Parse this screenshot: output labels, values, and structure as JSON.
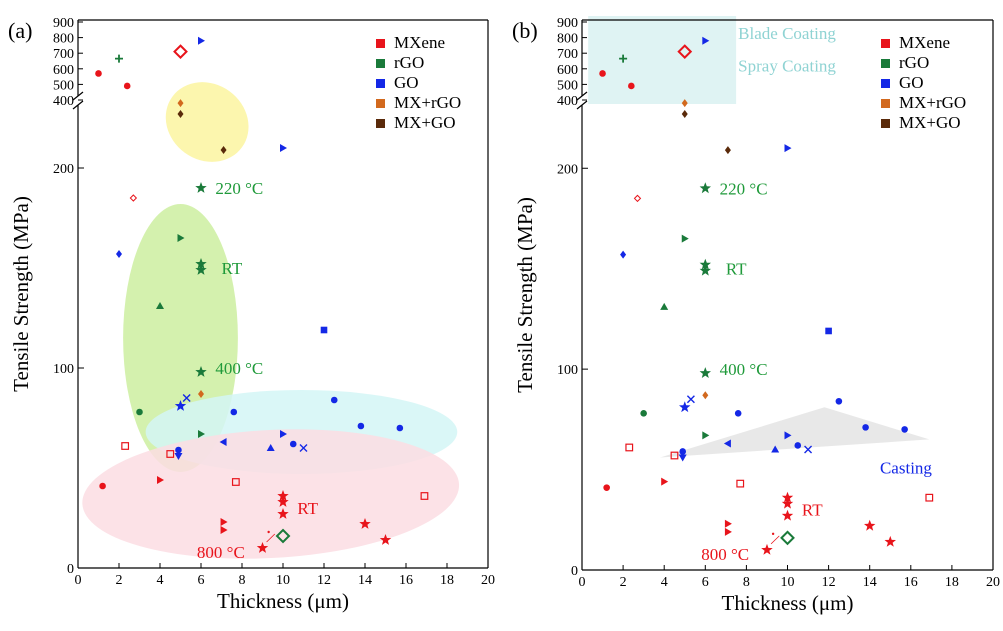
{
  "colors": {
    "mxene": "#e8141b",
    "rgo": "#1a7a3a",
    "go": "#1428e6",
    "mxrgo": "#d2691e",
    "mxgo": "#5a2a0a",
    "annot_green": "#1f9a3a",
    "annot_red": "#e8141b",
    "annot_blue": "#1428e6",
    "annot_cyan": "#8fd3d3"
  },
  "chart_data": [
    {
      "panel": "(a)",
      "type": "scatter",
      "xlabel": "Thickness (μm)",
      "ylabel": "Tensile Strength (MPa)",
      "xlim": [
        0,
        20
      ],
      "xticks": [
        "0",
        "2",
        "4",
        "6",
        "8",
        "10",
        "12",
        "14",
        "16",
        "18",
        "20"
      ],
      "ylim_lower": [
        0,
        230
      ],
      "yticks_lower": [
        "0",
        "100",
        "200"
      ],
      "yticks_upper": [
        "400",
        "500",
        "600",
        "700",
        "800",
        "900"
      ],
      "legend": [
        "MXene",
        "rGO",
        "GO",
        "MX+rGO",
        "MX+GO"
      ],
      "legend_position": "top-right",
      "annotations": [
        {
          "text": "220 °C",
          "x": 6.7,
          "y": 190,
          "color": "annot_green"
        },
        {
          "text": "RT",
          "x": 7.0,
          "y": 150,
          "color": "annot_green"
        },
        {
          "text": "400 °C",
          "x": 6.7,
          "y": 100,
          "color": "annot_green"
        },
        {
          "text": "RT",
          "x": 10.7,
          "y": 30,
          "color": "annot_red"
        },
        {
          "text": "800 °C",
          "x": 5.8,
          "y": 8,
          "color": "annot_red"
        }
      ]
    },
    {
      "panel": "(b)",
      "type": "scatter",
      "xlabel": "Thickness (μm)",
      "ylabel": "Tensile Strength (MPa)",
      "xlim": [
        0,
        20
      ],
      "xticks": [
        "0",
        "2",
        "4",
        "6",
        "8",
        "10",
        "12",
        "14",
        "16",
        "18",
        "20"
      ],
      "ylim_lower": [
        0,
        230
      ],
      "yticks_lower": [
        "0",
        "100",
        "200"
      ],
      "yticks_upper": [
        "400",
        "500",
        "600",
        "700",
        "800",
        "900"
      ],
      "legend": [
        "MXene",
        "rGO",
        "GO",
        "MX+rGO",
        "MX+GO"
      ],
      "legend_position": "top-right",
      "annotations": [
        {
          "text": "Blade Coating",
          "x": 7.6,
          "y_upper": 830,
          "color": "annot_cyan"
        },
        {
          "text": "Spray Coating",
          "x": 7.6,
          "y_upper": 620,
          "color": "annot_cyan"
        },
        {
          "text": "220 °C",
          "x": 6.7,
          "y": 190,
          "color": "annot_green"
        },
        {
          "text": "RT",
          "x": 7.0,
          "y": 150,
          "color": "annot_green"
        },
        {
          "text": "400 °C",
          "x": 6.7,
          "y": 100,
          "color": "annot_green"
        },
        {
          "text": "Casting",
          "x": 14.5,
          "y": 51,
          "color": "annot_blue"
        },
        {
          "text": "RT",
          "x": 10.7,
          "y": 30,
          "color": "annot_red"
        },
        {
          "text": "800 °C",
          "x": 5.8,
          "y": 8,
          "color": "annot_red"
        }
      ]
    }
  ],
  "points": [
    {
      "m": "MXene",
      "s": "circle",
      "x": 1.0,
      "yu": 570
    },
    {
      "m": "MXene",
      "s": "circle",
      "x": 2.4,
      "yu": 490
    },
    {
      "m": "MXene",
      "s": "circle",
      "x": 1.2,
      "y": 41
    },
    {
      "m": "MXene",
      "s": "sq-open",
      "x": 2.3,
      "y": 61
    },
    {
      "m": "MXene",
      "s": "sq-open",
      "x": 4.5,
      "y": 57
    },
    {
      "m": "MXene",
      "s": "sq-open",
      "x": 7.7,
      "y": 43
    },
    {
      "m": "MXene",
      "s": "sq-open",
      "x": 16.9,
      "y": 36
    },
    {
      "m": "MXene",
      "s": "tri-right",
      "x": 4.0,
      "y": 44
    },
    {
      "m": "MXene",
      "s": "tri-right",
      "x": 7.1,
      "y": 23
    },
    {
      "m": "MXene",
      "s": "tri-right",
      "x": 7.1,
      "y": 19
    },
    {
      "m": "MXene",
      "s": "star",
      "x": 9.0,
      "y": 10
    },
    {
      "m": "MXene",
      "s": "star",
      "x": 10.0,
      "y": 36
    },
    {
      "m": "MXene",
      "s": "star",
      "x": 10.0,
      "y": 33
    },
    {
      "m": "MXene",
      "s": "star",
      "x": 10.0,
      "y": 27
    },
    {
      "m": "MXene",
      "s": "star",
      "x": 14.0,
      "y": 22
    },
    {
      "m": "MXene",
      "s": "star",
      "x": 15.0,
      "y": 14
    },
    {
      "m": "MXene",
      "s": "dia-open",
      "x": 5.0,
      "yu": 710
    },
    {
      "m": "MXene",
      "s": "dia-open",
      "x": 2.7,
      "y": 185
    },
    {
      "m": "MXene",
      "s": "tiny",
      "x": 9.3,
      "y": 18
    },
    {
      "m": "rGO",
      "s": "plus",
      "x": 2.0,
      "yu": 665
    },
    {
      "m": "rGO",
      "s": "circle",
      "x": 3.0,
      "y": 78
    },
    {
      "m": "rGO",
      "s": "tri-up",
      "x": 4.0,
      "y": 131
    },
    {
      "m": "rGO",
      "s": "tri-right",
      "x": 5.0,
      "y": 165
    },
    {
      "m": "rGO",
      "s": "star",
      "x": 6.0,
      "y": 190
    },
    {
      "m": "rGO",
      "s": "star",
      "x": 6.0,
      "y": 152
    },
    {
      "m": "rGO",
      "s": "star",
      "x": 6.0,
      "y": 149
    },
    {
      "m": "rGO",
      "s": "star",
      "x": 6.0,
      "y": 98
    },
    {
      "m": "rGO",
      "s": "tri-right",
      "x": 6.0,
      "y": 67
    },
    {
      "m": "rGO",
      "s": "dia-open",
      "x": 10.0,
      "y": 16
    },
    {
      "m": "GO",
      "s": "tri-right",
      "x": 6.0,
      "yu": 780
    },
    {
      "m": "GO",
      "s": "tri-right",
      "x": 10.0,
      "y": 210
    },
    {
      "m": "GO",
      "s": "tri-right",
      "x": 10.0,
      "y": 67
    },
    {
      "m": "GO",
      "s": "diamond",
      "x": 2.0,
      "y": 157
    },
    {
      "m": "GO",
      "s": "square",
      "x": 12.0,
      "y": 119
    },
    {
      "m": "GO",
      "s": "circle",
      "x": 12.5,
      "y": 84
    },
    {
      "m": "GO",
      "s": "circle",
      "x": 13.8,
      "y": 71
    },
    {
      "m": "GO",
      "s": "circle",
      "x": 15.7,
      "y": 70
    },
    {
      "m": "GO",
      "s": "circle",
      "x": 7.6,
      "y": 78
    },
    {
      "m": "GO",
      "s": "circle",
      "x": 4.9,
      "y": 59
    },
    {
      "m": "GO",
      "s": "circle",
      "x": 10.5,
      "y": 62
    },
    {
      "m": "GO",
      "s": "tri-down",
      "x": 4.9,
      "y": 56
    },
    {
      "m": "GO",
      "s": "cross",
      "x": 5.3,
      "y": 85
    },
    {
      "m": "GO",
      "s": "star",
      "x": 5.0,
      "y": 81
    },
    {
      "m": "GO",
      "s": "tri-left",
      "x": 7.1,
      "y": 63
    },
    {
      "m": "GO",
      "s": "tri-up",
      "x": 9.4,
      "y": 60
    },
    {
      "m": "GO",
      "s": "cross",
      "x": 11.0,
      "y": 60
    },
    {
      "m": "MX+rGO",
      "s": "diamond",
      "x": 5.0,
      "yu": 380
    },
    {
      "m": "MX+rGO",
      "s": "diamond",
      "x": 6.0,
      "y": 87
    },
    {
      "m": "MX+GO",
      "s": "diamond",
      "x": 5.0,
      "y": 227
    },
    {
      "m": "MX+GO",
      "s": "diamond",
      "x": 7.1,
      "y": 209
    }
  ],
  "panel_a_regions": [
    {
      "name": "yellow-region",
      "fill": "#fbf5a0",
      "cx": 6.3,
      "cy": 223,
      "rx": 2.1,
      "ry": 19,
      "rot": 36
    },
    {
      "name": "green-region",
      "fill": "#cdeea0",
      "cx": 5.0,
      "cy": 115,
      "rx": 2.8,
      "ry": 67,
      "rot": 0
    },
    {
      "name": "cyan-region",
      "fill": "#d4f6f6",
      "cx": 10.9,
      "cy": 68,
      "rx": 7.6,
      "ry": 21,
      "rot": 0
    },
    {
      "name": "pink-region",
      "fill": "#fbdde3",
      "cx": 9.4,
      "cy": 37,
      "rx": 9.2,
      "ry": 32,
      "rot": -3
    }
  ]
}
